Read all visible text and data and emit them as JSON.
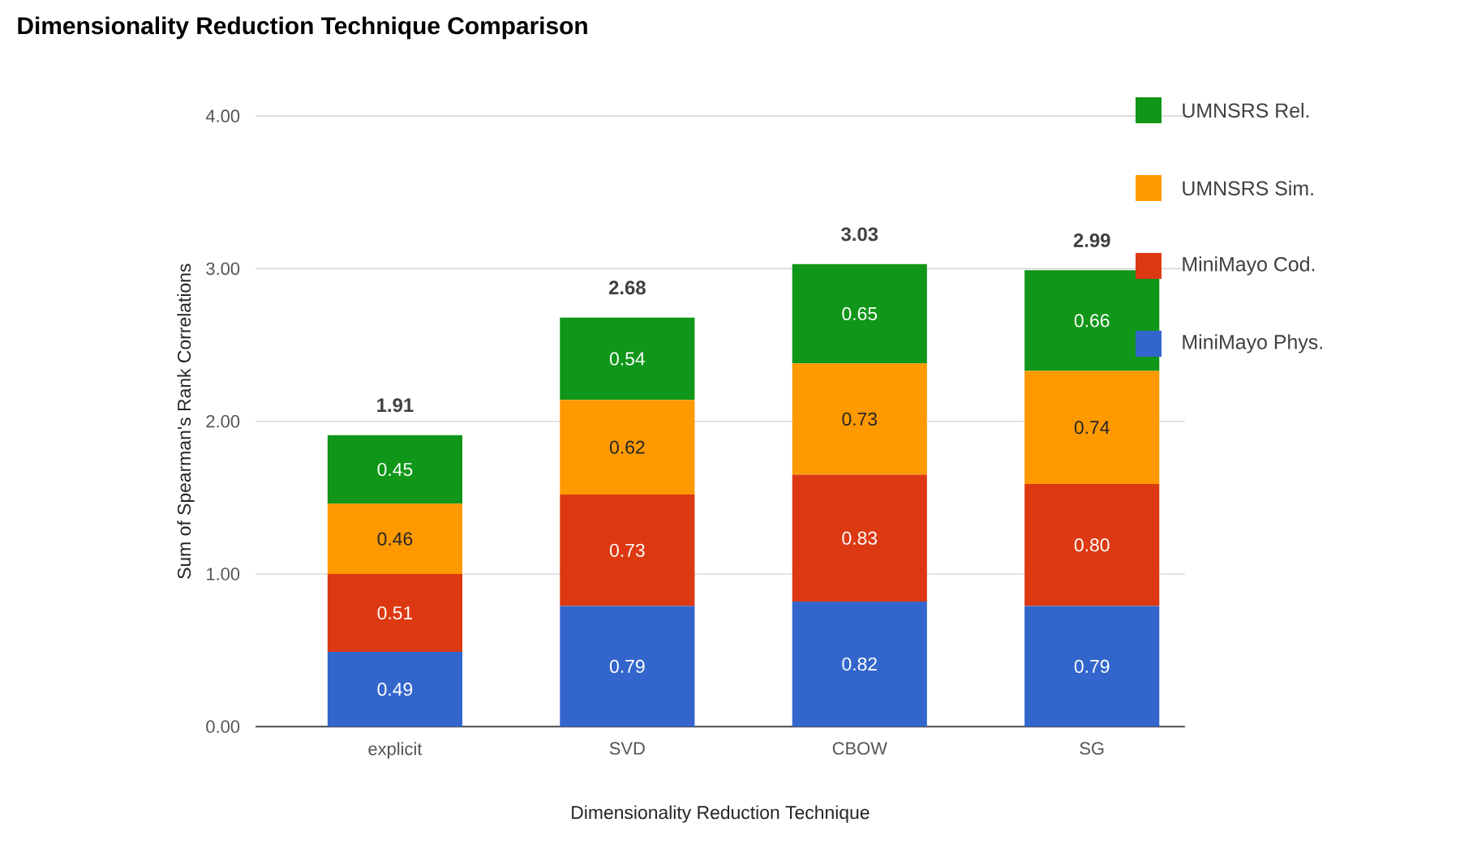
{
  "chart_data": {
    "type": "bar",
    "title": "Dimensionality Reduction Technique Comparison",
    "xlabel": "Dimensionality Reduction Technique",
    "ylabel": "Sum of Spearman's Rank Correlations",
    "categories": [
      "explicit",
      "SVD",
      "CBOW",
      "SG"
    ],
    "series": [
      {
        "name": "MiniMayo Phys.",
        "color": "#3366cc",
        "values": [
          0.49,
          0.79,
          0.82,
          0.79
        ],
        "value_labels": [
          "0.49",
          "0.79",
          "0.82",
          "0.79"
        ]
      },
      {
        "name": "MiniMayo Cod.",
        "color": "#dc3912",
        "values": [
          0.51,
          0.73,
          0.83,
          0.8
        ],
        "value_labels": [
          "0.51",
          "0.73",
          "0.83",
          "0.80"
        ]
      },
      {
        "name": "UMNSRS Sim.",
        "color": "#ff9900",
        "values": [
          0.46,
          0.62,
          0.73,
          0.74
        ],
        "value_labels": [
          "0.46",
          "0.62",
          "0.73",
          "0.74"
        ]
      },
      {
        "name": "UMNSRS Rel.",
        "color": "#109618",
        "values": [
          0.45,
          0.54,
          0.65,
          0.66
        ],
        "value_labels": [
          "0.45",
          "0.54",
          "0.65",
          "0.66"
        ]
      }
    ],
    "stacked": true,
    "totals": [
      "1.91",
      "2.68",
      "3.03",
      "2.99"
    ],
    "ylim": [
      0,
      4
    ],
    "yticks": [
      {
        "value": 0,
        "label": "0.00"
      },
      {
        "value": 1,
        "label": "1.00"
      },
      {
        "value": 2,
        "label": "2.00"
      },
      {
        "value": 3,
        "label": "3.00"
      },
      {
        "value": 4,
        "label": "4.00"
      }
    ],
    "grid": "y",
    "legend": "right"
  }
}
